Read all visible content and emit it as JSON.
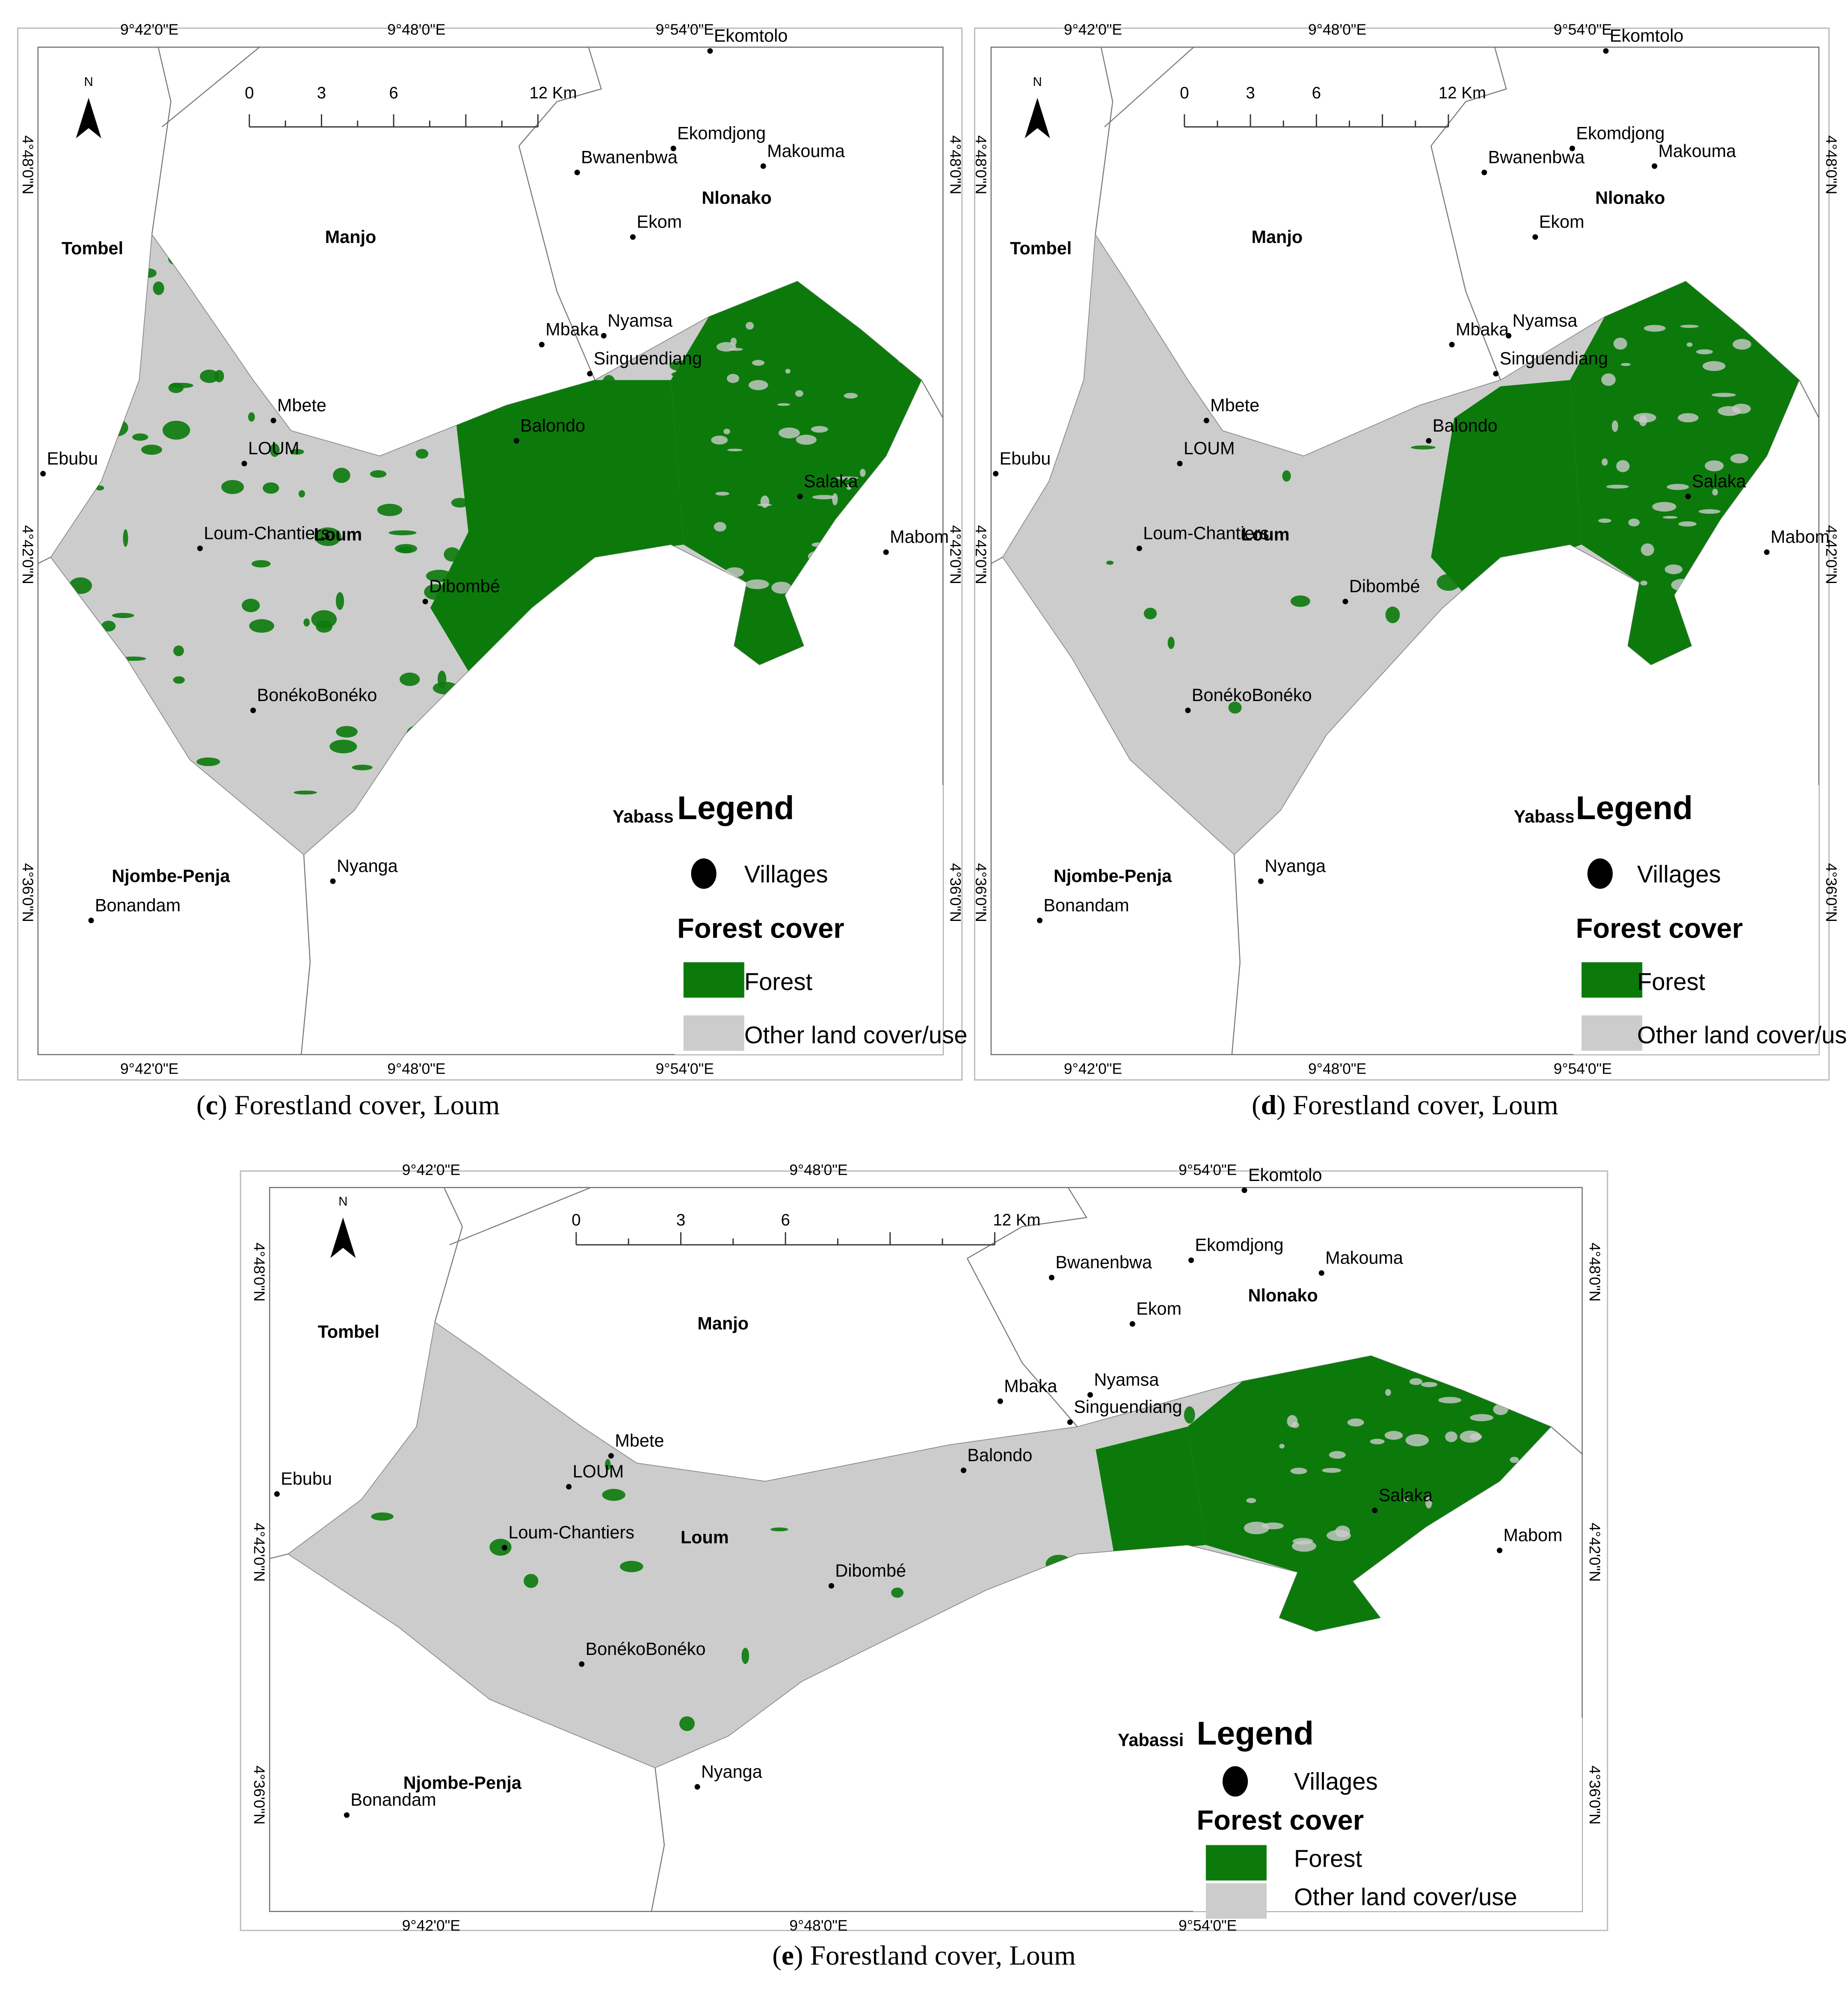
{
  "panels": [
    {
      "caption": {
        "open": "(",
        "letter": "c",
        "rest": ") Forestland cover, Loum"
      },
      "longitudes": [
        "9°42'0\"E",
        "9°48'0\"E",
        "9°54'0\"E"
      ],
      "latitudes": [
        "4°48'0\"N",
        "4°42'0\"N",
        "4°36'0\"N"
      ],
      "north": "N",
      "scale": [
        "0",
        "3",
        "6",
        "12 Km"
      ],
      "places": [
        "Ekomtolo",
        "Bwanenbwa",
        "Ekomdjong",
        "Makouma",
        "Nlonako",
        "Ekom",
        "Tombel",
        "Manjo",
        "Mbaka",
        "Nyamsa",
        "Singuendiang",
        "Mbete",
        "LOUM",
        "Ebubu",
        "Balondo",
        "Salaka",
        "Loum-Chantiers",
        "Loum",
        "Mabom",
        "Dibombé",
        "BonékoBonéko",
        "Yabassi",
        "Njombe-Penja",
        "Nyanga",
        "Bonandam"
      ],
      "legend": {
        "title": "Legend",
        "villages": "Villages",
        "group": "Forest cover",
        "forest": "Forest",
        "other": "Other land cover/use"
      }
    },
    {
      "caption": {
        "open": "(",
        "letter": "d",
        "rest": ") Forestland cover, Loum"
      },
      "longitudes": [
        "9°42'0\"E",
        "9°48'0\"E",
        "9°54'0\"E"
      ],
      "latitudes": [
        "4°48'0\"N",
        "4°42'0\"N",
        "4°36'0\"N"
      ],
      "north": "N",
      "scale": [
        "0",
        "3",
        "6",
        "12 Km"
      ],
      "places": [
        "Ekomtolo",
        "Bwanenbwa",
        "Ekomdjong",
        "Makouma",
        "Nlonako",
        "Ekom",
        "Tombel",
        "Manjo",
        "Mbaka",
        "Nyamsa",
        "Singuendiang",
        "Mbete",
        "LOUM",
        "Ebubu",
        "Balondo",
        "Salaka",
        "Loum-Chantiers",
        "Loum",
        "Mabom",
        "Dibombé",
        "BonékoBonéko",
        "Yabassi",
        "Njombe-Penja",
        "Nyanga",
        "Bonandam"
      ],
      "legend": {
        "title": "Legend",
        "villages": "Villages",
        "group": "Forest cover",
        "forest": "Forest",
        "other": "Other land cover/use"
      }
    },
    {
      "caption": {
        "open": "(",
        "letter": "e",
        "rest": ") Forestland cover, Loum"
      },
      "longitudes": [
        "9°42'0\"E",
        "9°48'0\"E",
        "9°54'0\"E"
      ],
      "latitudes": [
        "4°48'0\"N",
        "4°42'0\"N",
        "4°36'0\"N"
      ],
      "north": "N",
      "scale": [
        "0",
        "3",
        "6",
        "12 Km"
      ],
      "places": [
        "Ekomtolo",
        "Bwanenbwa",
        "Ekomdjong",
        "Makouma",
        "Nlonako",
        "Ekom",
        "Tombel",
        "Manjo",
        "Mbaka",
        "Nyamsa",
        "Singuendiang",
        "Mbete",
        "LOUM",
        "Ebubu",
        "Balondo",
        "Salaka",
        "Loum-Chantiers",
        "Loum",
        "Mabom",
        "Dibombé",
        "BonékoBonéko",
        "Yabassi",
        "Njombe-Penja",
        "Nyanga",
        "Bonandam"
      ],
      "legend": {
        "title": "Legend",
        "villages": "Villages",
        "group": "Forest cover",
        "forest": "Forest",
        "other": "Other land cover/use"
      }
    }
  ]
}
